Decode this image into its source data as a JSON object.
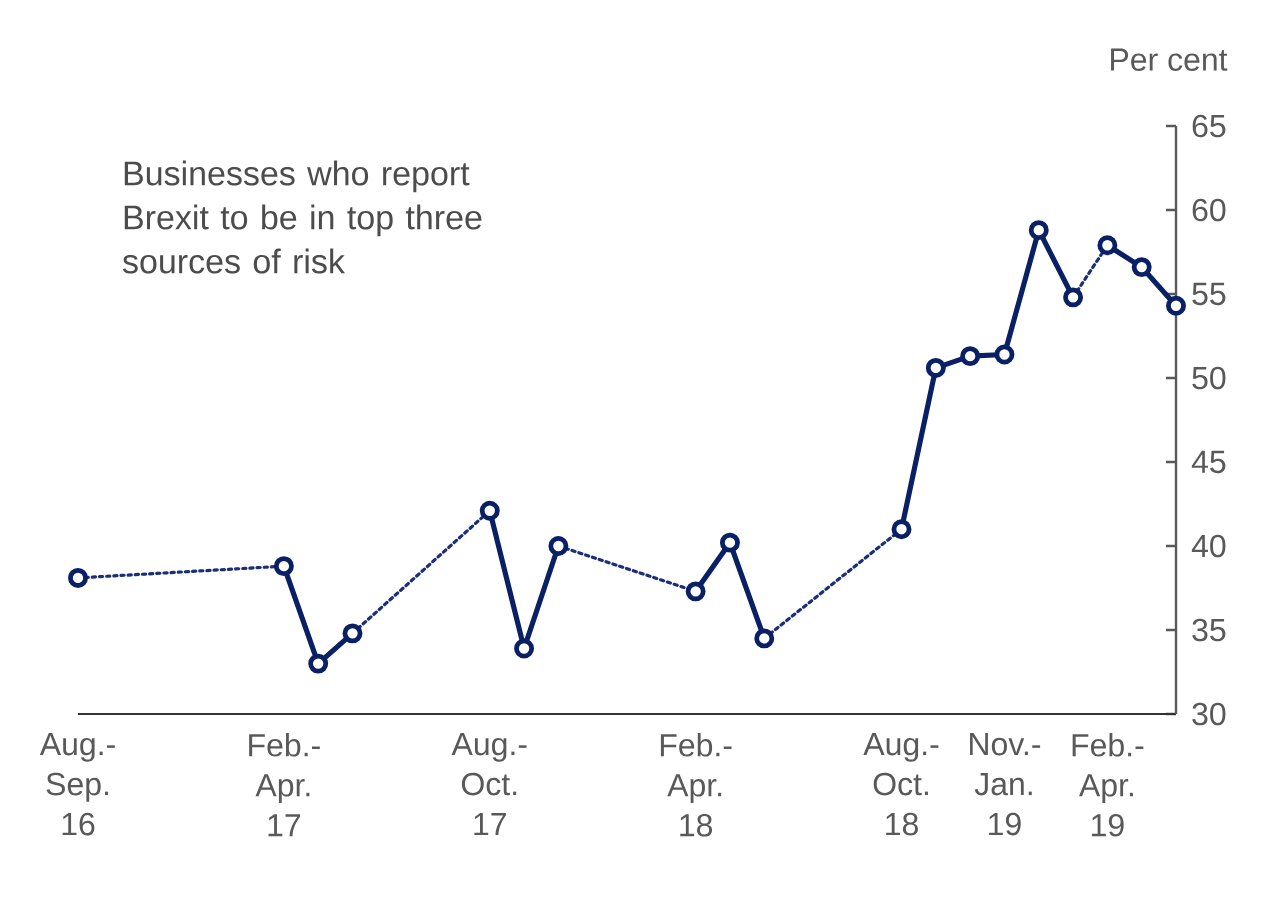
{
  "chart_data": {
    "type": "line",
    "title": "Businesses who report Brexit to be in top three sources of risk",
    "ylabel": "Per cent",
    "xlim": [
      "2016-08",
      "2019-04"
    ],
    "ylim": [
      30,
      65
    ],
    "yticks": [
      30,
      35,
      40,
      45,
      50,
      55,
      60,
      65
    ],
    "xticks": [
      {
        "value": "2016-08",
        "label": "Aug.- Sep. 16"
      },
      {
        "value": "2017-02",
        "label": "Feb.- Apr. 17"
      },
      {
        "value": "2017-08",
        "label": "Aug.- Oct. 17"
      },
      {
        "value": "2018-02",
        "label": "Feb.- Apr. 18"
      },
      {
        "value": "2018-08",
        "label": "Aug.- Oct. 18"
      },
      {
        "value": "2018-11",
        "label": "Nov.- Jan. 19"
      },
      {
        "value": "2019-02",
        "label": "Feb.- Apr. 19"
      }
    ],
    "series": [
      {
        "color": "#1a2f78",
        "line_style": "dotted",
        "x": [
          "2016-08",
          "2017-02",
          "2017-03",
          "2017-04",
          "2017-08",
          "2017-09",
          "2017-10",
          "2018-02",
          "2018-03",
          "2018-04",
          "2018-08",
          "2018-09",
          "2019-01",
          "2019-02"
        ],
        "values": [
          38.1,
          38.8,
          null,
          34.8,
          42.1,
          null,
          40.0,
          37.3,
          null,
          34.5,
          41.0,
          null,
          54.8,
          57.9
        ]
      },
      {
        "color": "#0a2065",
        "line_style": "solid",
        "marker": "circle",
        "x": [
          "2016-08",
          "2016-11",
          "2017-02",
          "2017-03",
          "2017-04",
          "2017-06",
          "2017-08",
          "2017-09",
          "2017-10",
          "2017-12",
          "2018-02",
          "2018-03",
          "2018-04",
          "2018-06",
          "2018-08",
          "2018-09",
          "2018-10",
          "2018-11",
          "2018-12",
          "2019-01",
          "2019-01-16",
          "2019-02",
          "2019-03",
          "2019-04"
        ],
        "values": [
          38.1,
          null,
          38.8,
          33.0,
          34.8,
          null,
          42.1,
          33.9,
          40.0,
          null,
          37.3,
          40.2,
          34.5,
          null,
          41.0,
          50.6,
          51.3,
          51.4,
          58.8,
          54.8,
          null,
          57.9,
          56.6,
          54.3
        ]
      }
    ]
  }
}
